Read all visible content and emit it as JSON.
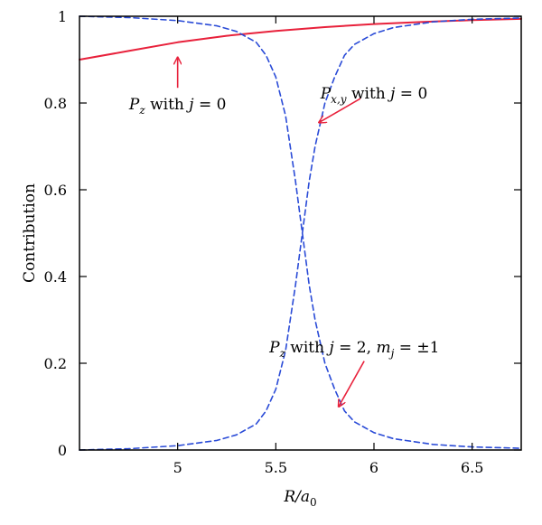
{
  "chart_data": {
    "type": "line",
    "title": "",
    "xlabel": "R/a",
    "xlabel_sub": "0",
    "ylabel": "Contribution",
    "xlim": [
      4.5,
      6.75
    ],
    "ylim": [
      0,
      1
    ],
    "xticks": [
      5,
      5.5,
      6,
      6.5
    ],
    "xtick_labels": [
      "5",
      "5.5",
      "6",
      "6.5"
    ],
    "yticks": [
      0,
      0.2,
      0.4,
      0.6,
      0.8,
      1
    ],
    "ytick_labels": [
      "0",
      "0.2",
      "0.4",
      "0.6",
      "0.8",
      "1"
    ],
    "grid": false,
    "legend": "none",
    "series": [
      {
        "color": "#e8213b",
        "style": "solid",
        "x": [
          4.5,
          4.75,
          5.0,
          5.25,
          5.5,
          5.75,
          6.0,
          6.25,
          6.5,
          6.75
        ],
        "y": [
          0.9,
          0.92,
          0.94,
          0.955,
          0.966,
          0.975,
          0.982,
          0.987,
          0.991,
          0.994
        ]
      },
      {
        "color": "#2a4bd7",
        "style": "dashed",
        "x": [
          4.5,
          4.75,
          5.0,
          5.2,
          5.3,
          5.4,
          5.45,
          5.5,
          5.55,
          5.6,
          5.635,
          5.67,
          5.7,
          5.75,
          5.8,
          5.85,
          5.9,
          6.0,
          6.1,
          6.3,
          6.5,
          6.75
        ],
        "y": [
          1.0,
          0.997,
          0.99,
          0.978,
          0.965,
          0.94,
          0.91,
          0.86,
          0.77,
          0.62,
          0.5,
          0.38,
          0.3,
          0.2,
          0.14,
          0.09,
          0.065,
          0.04,
          0.026,
          0.013,
          0.007,
          0.004
        ]
      },
      {
        "color": "#2a4bd7",
        "style": "dashed",
        "x": [
          4.5,
          4.75,
          5.0,
          5.2,
          5.3,
          5.4,
          5.45,
          5.5,
          5.55,
          5.6,
          5.635,
          5.67,
          5.7,
          5.75,
          5.8,
          5.85,
          5.9,
          6.0,
          6.1,
          6.3,
          6.5,
          6.75
        ],
        "y": [
          0.0,
          0.003,
          0.01,
          0.022,
          0.035,
          0.06,
          0.09,
          0.14,
          0.23,
          0.38,
          0.5,
          0.62,
          0.7,
          0.8,
          0.86,
          0.91,
          0.935,
          0.96,
          0.974,
          0.987,
          0.993,
          0.996
        ]
      }
    ],
    "annotations": [
      {
        "id": "pz-j0",
        "var": "P",
        "sub": "z",
        "text": " with ",
        "var2": "j",
        "rest": " = 0",
        "text_x": 5.0,
        "text_y": 0.785,
        "arrow_from": [
          5.0,
          0.835
        ],
        "arrow_to": [
          5.0,
          0.905
        ]
      },
      {
        "id": "pxy-j0",
        "var": "P",
        "sub": "x,y",
        "text": " with ",
        "var2": "j",
        "rest": " = 0",
        "text_x": 6.0,
        "text_y": 0.81,
        "arrow_from": [
          5.93,
          0.81
        ],
        "arrow_to": [
          5.72,
          0.755
        ]
      },
      {
        "id": "pz-j2",
        "var": "P",
        "sub": "z",
        "text": " with ",
        "var2": "j",
        "rest": " = 2, ",
        "var3": "m",
        "sub3": "j",
        "rest3": " = ±1",
        "text_x": 5.9,
        "text_y": 0.225,
        "arrow_from": [
          5.95,
          0.205
        ],
        "arrow_to": [
          5.82,
          0.1
        ]
      }
    ]
  }
}
